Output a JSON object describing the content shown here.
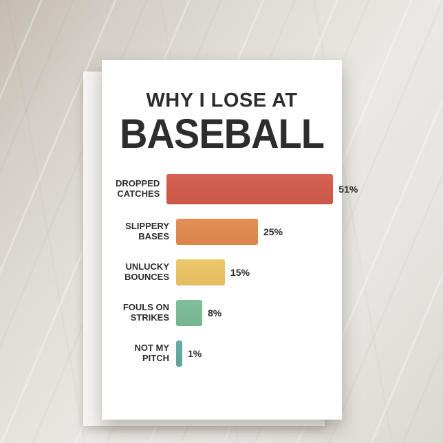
{
  "card": {
    "title_line1": "WHY I LOSE AT",
    "title_line2": "BASEBALL"
  },
  "chart_data": {
    "type": "bar",
    "orientation": "horizontal",
    "title": "WHY I LOSE AT BASEBALL",
    "xlabel": "",
    "ylabel": "",
    "xlim": [
      0,
      55
    ],
    "grid": false,
    "legend": "none",
    "categories": [
      "Dropped Catches",
      "Slippery Bases",
      "Unlucky Bounces",
      "Fouls on Strikes",
      "Not My Pitch"
    ],
    "label_lines": [
      [
        "DROPPED",
        "CATCHES"
      ],
      [
        "SLIPPERY",
        "BASES"
      ],
      [
        "UNLUCKY",
        "BOUNCES"
      ],
      [
        "FOULS ON",
        "STRIKES"
      ],
      [
        "NOT MY",
        "PITCH"
      ]
    ],
    "values": [
      51,
      25,
      15,
      8,
      1
    ],
    "value_labels": [
      "51%",
      "25%",
      "15%",
      "8%",
      "1%"
    ],
    "bar_colors": [
      "#d15948",
      "#e2884e",
      "#ecc363",
      "#79ba96",
      "#5fa8a0"
    ]
  },
  "colors": {
    "text": "#2d2d2d",
    "card_background": "#ffffff",
    "scene_background": "#ddd9d2"
  }
}
